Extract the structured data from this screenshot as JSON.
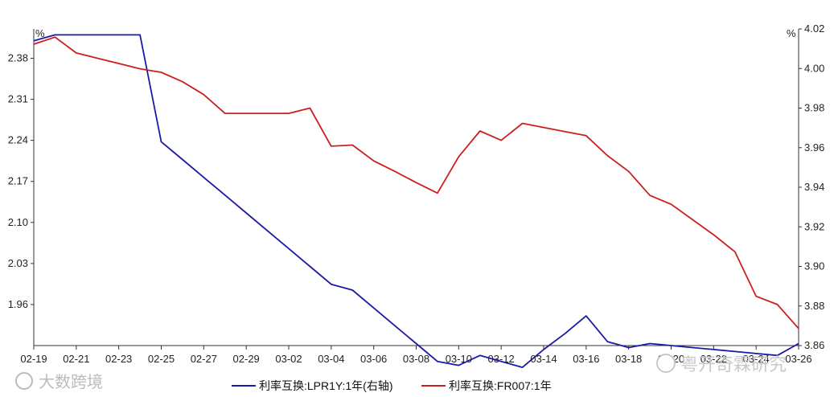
{
  "chart_data": {
    "type": "line",
    "left_axis": {
      "unit": "%",
      "ylim": [
        1.89,
        2.43
      ],
      "ticks": [
        1.96,
        2.03,
        2.1,
        2.17,
        2.24,
        2.31,
        2.38
      ]
    },
    "right_axis": {
      "unit": "%",
      "ylim": [
        3.86,
        4.02
      ],
      "ticks": [
        3.86,
        3.88,
        3.9,
        3.92,
        3.94,
        3.96,
        3.98,
        4.0,
        4.02
      ]
    },
    "x_tick_labels": [
      "02-19",
      "02-21",
      "02-23",
      "02-25",
      "02-27",
      "02-29",
      "03-02",
      "03-04",
      "03-06",
      "03-08",
      "03-10",
      "03-12",
      "03-14",
      "03-16",
      "03-18",
      "03-20",
      "03-22",
      "03-24",
      "03-26"
    ],
    "x": [
      "02-19",
      "02-20",
      "02-21",
      "02-22",
      "02-23",
      "02-24",
      "02-25",
      "02-26",
      "02-27",
      "02-28",
      "02-29",
      "03-01",
      "03-02",
      "03-03",
      "03-04",
      "03-05",
      "03-06",
      "03-07",
      "03-08",
      "03-09",
      "03-10",
      "03-11",
      "03-12",
      "03-13",
      "03-14",
      "03-15",
      "03-16",
      "03-17",
      "03-18",
      "03-19",
      "03-20",
      "03-21",
      "03-22",
      "03-23",
      "03-24",
      "03-25",
      "03-26"
    ],
    "series": [
      {
        "name": "利率互换:LPR1Y:1年(右轴)",
        "axis": "right",
        "color": "#1a1aa6",
        "values": [
          4.014,
          4.017,
          4.017,
          4.017,
          4.017,
          4.017,
          3.963,
          3.954,
          3.945,
          3.936,
          3.927,
          3.918,
          3.909,
          3.9,
          3.891,
          3.888,
          3.879,
          3.87,
          3.861,
          3.852,
          3.85,
          3.855,
          3.852,
          3.849,
          3.858,
          3.866,
          3.875,
          3.862,
          3.859,
          3.861,
          3.86,
          3.859,
          3.858,
          3.857,
          3.856,
          3.855,
          3.861
        ]
      },
      {
        "name": "利率互换:FR007:1年",
        "axis": "left",
        "color": "#cc1f1f",
        "values": [
          2.404,
          2.416,
          2.389,
          2.38,
          2.371,
          2.362,
          2.356,
          2.34,
          2.318,
          2.286,
          2.286,
          2.286,
          2.286,
          2.295,
          2.23,
          2.232,
          2.205,
          2.187,
          2.168,
          2.15,
          2.212,
          2.256,
          2.24,
          2.269,
          2.262,
          2.255,
          2.248,
          2.214,
          2.187,
          2.146,
          2.131,
          2.105,
          2.079,
          2.05,
          1.974,
          1.96,
          1.919
        ]
      }
    ]
  },
  "watermark": {
    "left_text": "大数跨境",
    "right_text": "粤开奇霖研究"
  }
}
